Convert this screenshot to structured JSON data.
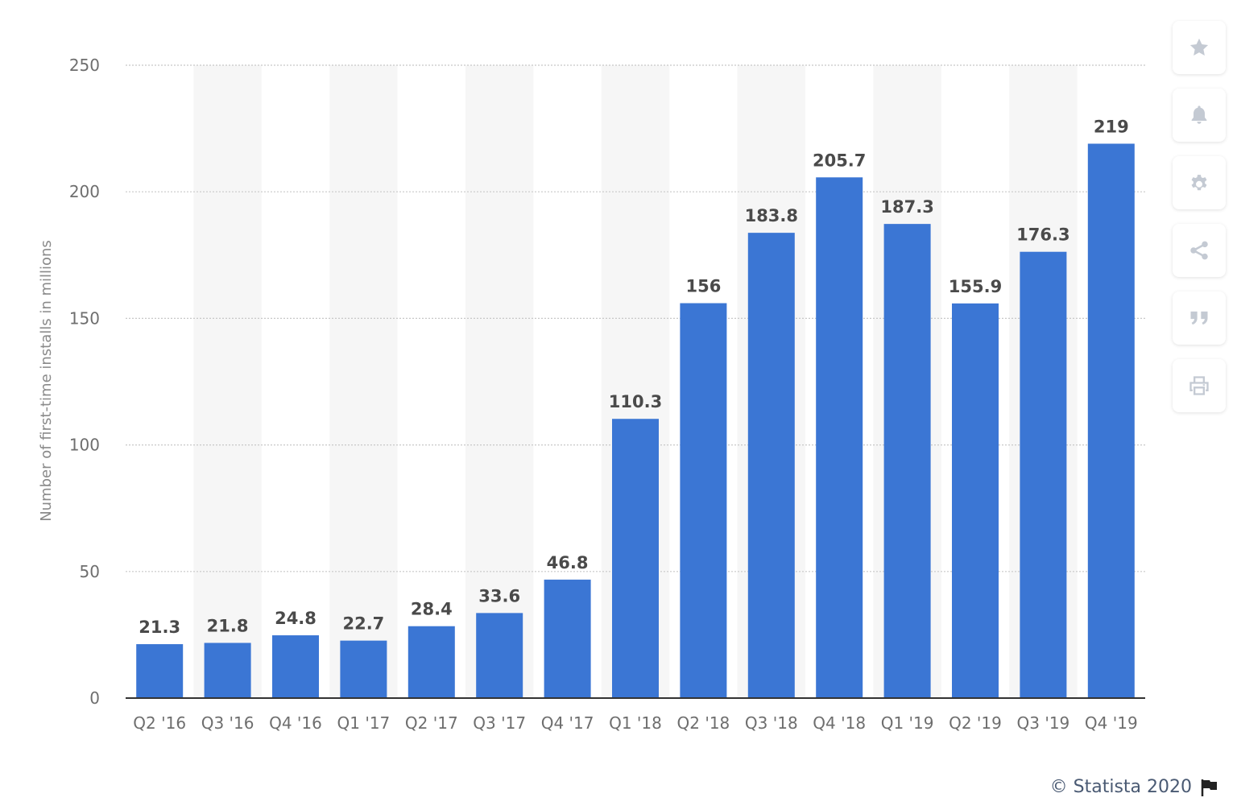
{
  "chart_data": {
    "type": "bar",
    "categories": [
      "Q2 '16",
      "Q3 '16",
      "Q4 '16",
      "Q1 '17",
      "Q2 '17",
      "Q3 '17",
      "Q4 '17",
      "Q1 '18",
      "Q2 '18",
      "Q3 '18",
      "Q4 '18",
      "Q1 '19",
      "Q2 '19",
      "Q3 '19",
      "Q4 '19"
    ],
    "values": [
      21.3,
      21.8,
      24.8,
      22.7,
      28.4,
      33.6,
      46.8,
      110.3,
      156,
      183.8,
      205.7,
      187.3,
      155.9,
      176.3,
      219
    ],
    "value_labels": [
      "21.3",
      "21.8",
      "24.8",
      "22.7",
      "28.4",
      "33.6",
      "46.8",
      "110.3",
      "156",
      "183.8",
      "205.7",
      "187.3",
      "155.9",
      "176.3",
      "219"
    ],
    "ylabel": "Number of first-time installs in millions",
    "ylim": [
      0,
      250
    ],
    "yticks": [
      "0",
      "50",
      "100",
      "150",
      "200",
      "250"
    ],
    "grid": true,
    "bar_color": "#3b76d4",
    "band_color": "#f6f6f6"
  },
  "toolbar": {
    "icons": [
      "star-icon",
      "bell-icon",
      "gear-icon",
      "share-icon",
      "quote-icon",
      "print-icon"
    ],
    "icon_color": "#c4cad3"
  },
  "footer": {
    "credit": "© Statista 2020",
    "flag_icon": "flag-icon"
  }
}
